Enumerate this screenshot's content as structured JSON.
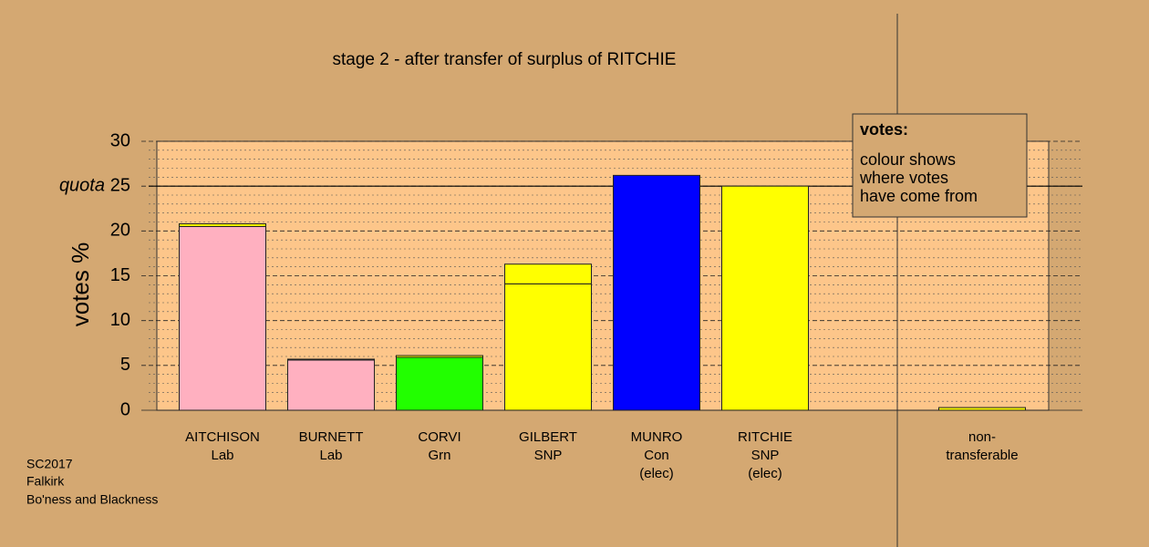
{
  "chart_data": {
    "type": "stacked_bar",
    "title": "stage 2 - after transfer of surplus of RITCHIE",
    "y_label": "votes %",
    "categories": [
      [
        "AITCHISON",
        "Lab"
      ],
      [
        "BURNETT",
        "Lab"
      ],
      [
        "CORVI",
        "Grn"
      ],
      [
        "GILBERT",
        "SNP"
      ],
      [
        "MUNRO",
        "Con",
        "(elec)"
      ],
      [
        "RITCHIE",
        "SNP",
        "(elec)"
      ],
      null,
      [
        "non-",
        "transferable"
      ]
    ],
    "series": [
      {
        "colors": [
          "#ffb0c0",
          "#ffb0c0",
          "#22ff00",
          "#ffff00",
          "#0000ff",
          "#ffff00",
          null,
          "#ffff00"
        ],
        "values": [
          20.5,
          5.6,
          5.9,
          14.1,
          26.2,
          25.0,
          null,
          0.3
        ]
      },
      {
        "color": "#ffff00",
        "values": [
          0.3,
          0.1,
          0.2,
          2.2,
          null,
          null,
          null,
          null
        ]
      }
    ],
    "ylim": [
      0,
      30
    ],
    "yticks": [
      0,
      5,
      10,
      15,
      20,
      25,
      30
    ],
    "minor_yticks": [
      1,
      2,
      3,
      4,
      6,
      7,
      8,
      9,
      11,
      12,
      13,
      14,
      16,
      17,
      18,
      19,
      21,
      22,
      23,
      24,
      26,
      27,
      28,
      29
    ],
    "quota": {
      "value": 25,
      "label": "quota"
    },
    "legend": {
      "title": "votes:",
      "lines": [
        "colour shows",
        "where votes",
        "have come from"
      ]
    },
    "footer": [
      "SC2017",
      "Falkirk",
      "Bo'ness and Blackness"
    ]
  }
}
